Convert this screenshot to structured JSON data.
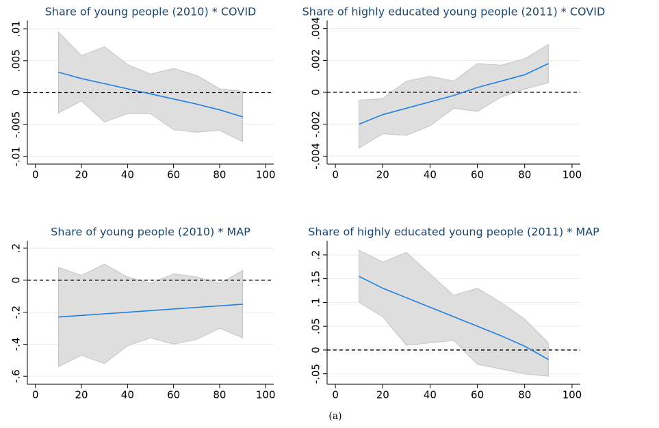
{
  "chart_data": [
    {
      "type": "line",
      "title": "Share of young people (2010) * COVID",
      "x": [
        10,
        20,
        30,
        40,
        50,
        60,
        70,
        80,
        90
      ],
      "series": [
        {
          "color": "#1e7fe0",
          "values": [
            0.0032,
            0.0022,
            0.0014,
            0.0006,
            -0.0002,
            -0.001,
            -0.0018,
            -0.0027,
            -0.0038
          ]
        }
      ],
      "band": {
        "color": "#dedede",
        "upper": [
          0.0095,
          0.0058,
          0.0072,
          0.0044,
          0.0029,
          0.0038,
          0.0027,
          0.0006,
          0.0002
        ],
        "lower": [
          -0.0032,
          -0.0013,
          -0.0046,
          -0.0033,
          -0.0033,
          -0.0058,
          -0.0062,
          -0.0059,
          -0.0077
        ]
      },
      "refline": 0,
      "xlim": [
        -3.5,
        103.5
      ],
      "xticks": [
        0,
        20,
        40,
        60,
        80,
        100
      ],
      "ylim": [
        -0.0112,
        0.0113
      ],
      "yticks": [
        {
          "value": -0.01,
          "label": "-.01"
        },
        {
          "value": -0.005,
          "label": "-.005"
        },
        0,
        {
          "value": 0.005,
          "label": ".005"
        },
        {
          "value": 0.01,
          "label": ".01"
        }
      ],
      "grid": true
    },
    {
      "type": "line",
      "title": "Share of highly educated young people (2011) * COVID",
      "x": [
        10,
        20,
        30,
        40,
        50,
        60,
        70,
        80,
        90
      ],
      "series": [
        {
          "color": "#1e7fe0",
          "values": [
            -0.002,
            -0.0014,
            -0.001,
            -0.0006,
            -0.0002,
            0.0003,
            0.0007,
            0.0011,
            0.0018
          ]
        }
      ],
      "band": {
        "color": "#dedede",
        "upper": [
          -0.0005,
          -0.0004,
          0.0007,
          0.001,
          0.0007,
          0.0018,
          0.0017,
          0.0021,
          0.003
        ],
        "lower": [
          -0.0035,
          -0.0026,
          -0.0027,
          -0.0021,
          -0.001,
          -0.0012,
          -0.0003,
          0.0002,
          0.0006
        ]
      },
      "refline": 0,
      "xlim": [
        -3.5,
        103.5
      ],
      "xticks": [
        0,
        20,
        40,
        60,
        80,
        100
      ],
      "ylim": [
        -0.0045,
        0.0045
      ],
      "yticks": [
        {
          "value": -0.004,
          "label": "-.004"
        },
        {
          "value": -0.002,
          "label": "-.002"
        },
        0,
        {
          "value": 0.002,
          "label": ".002"
        },
        {
          "value": 0.004,
          "label": ".004"
        }
      ],
      "grid": true
    },
    {
      "type": "line",
      "title": "Share of young people (2010) * MAP",
      "x": [
        10,
        20,
        30,
        40,
        50,
        60,
        70,
        80,
        90
      ],
      "series": [
        {
          "color": "#1e7fe0",
          "values": [
            -0.23,
            -0.22,
            -0.21,
            -0.2,
            -0.19,
            -0.18,
            -0.17,
            -0.16,
            -0.15
          ]
        }
      ],
      "band": {
        "color": "#dedede",
        "upper": [
          0.08,
          0.03,
          0.1,
          0.02,
          -0.02,
          0.04,
          0.02,
          -0.02,
          0.06
        ],
        "lower": [
          -0.54,
          -0.47,
          -0.52,
          -0.41,
          -0.36,
          -0.4,
          -0.37,
          -0.3,
          -0.36
        ]
      },
      "refline": 0,
      "xlim": [
        -3.5,
        103.5
      ],
      "xticks": [
        0,
        20,
        40,
        60,
        80,
        100
      ],
      "ylim": [
        -0.65,
        0.247
      ],
      "yticks": [
        {
          "value": -0.6,
          "label": "-.6"
        },
        {
          "value": -0.4,
          "label": "-.4"
        },
        {
          "value": -0.2,
          "label": "-.2"
        },
        0,
        {
          "value": 0.2,
          "label": ".2"
        }
      ],
      "grid": true
    },
    {
      "type": "line",
      "title": "Share of highly educated young people (2011) * MAP",
      "x": [
        10,
        20,
        30,
        40,
        50,
        60,
        70,
        80,
        90
      ],
      "series": [
        {
          "color": "#1e7fe0",
          "values": [
            0.155,
            0.13,
            0.11,
            0.09,
            0.07,
            0.05,
            0.03,
            0.008,
            -0.02
          ]
        }
      ],
      "band": {
        "color": "#dedede",
        "upper": [
          0.21,
          0.185,
          0.205,
          0.16,
          0.115,
          0.13,
          0.1,
          0.065,
          0.015
        ],
        "lower": [
          0.1,
          0.07,
          0.01,
          0.015,
          0.02,
          -0.03,
          -0.04,
          -0.05,
          -0.055
        ]
      },
      "refline": 0,
      "xlim": [
        -3.5,
        103.5
      ],
      "xticks": [
        0,
        20,
        40,
        60,
        80,
        100
      ],
      "ylim": [
        -0.072,
        0.23
      ],
      "yticks": [
        {
          "value": -0.05,
          "label": "-.05"
        },
        0,
        {
          "value": 0.05,
          "label": ".05"
        },
        {
          "value": 0.1,
          "label": ".1"
        },
        {
          "value": 0.15,
          "label": ".15"
        },
        {
          "value": 0.2,
          "label": ".2"
        }
      ],
      "grid": true
    }
  ],
  "caption": "(a)"
}
